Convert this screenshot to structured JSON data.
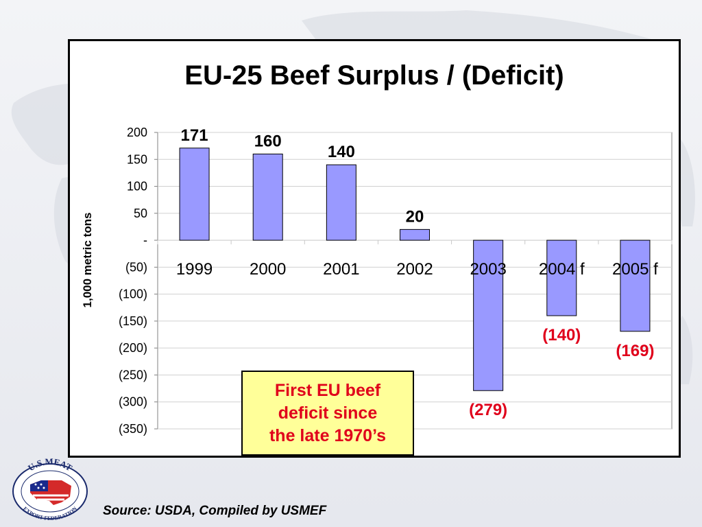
{
  "chart_data": {
    "type": "bar",
    "title": "EU-25 Beef Surplus / (Deficit)",
    "ylabel": "1,000 metric tons",
    "xlabel": "",
    "categories": [
      "1999",
      "2000",
      "2001",
      "2002",
      "2003",
      "2004 f",
      "2005 f"
    ],
    "values": [
      171,
      160,
      140,
      20,
      -279,
      -140,
      -169
    ],
    "value_labels": [
      "171",
      "160",
      "140",
      "20",
      "(279)",
      "(140)",
      "(169)"
    ],
    "ylim": [
      -350,
      200
    ],
    "y_ticks": [
      200,
      150,
      100,
      50,
      0,
      -50,
      -100,
      -150,
      -200,
      -250,
      -300,
      -350
    ],
    "y_tick_labels": [
      "200",
      "150",
      "100",
      "50",
      "-",
      "(50)",
      "(100)",
      "(150)",
      "(200)",
      "(250)",
      "(300)",
      "(350)"
    ],
    "grid": true,
    "bar_color": "#9999ff",
    "negative_label_color": "#e0001b",
    "positive_label_color": "#000000"
  },
  "callout": {
    "lines": [
      "First EU beef",
      "deficit since",
      "the late 1970’s"
    ],
    "text_color": "#e0001b",
    "background": "#ffff99"
  },
  "source": "Source:  USDA, Compiled by USMEF",
  "logo": {
    "icon": "usmef-logo-icon",
    "text_top": "U.S.MEAT",
    "text_bottom": "EXPORT FEDERATION"
  }
}
